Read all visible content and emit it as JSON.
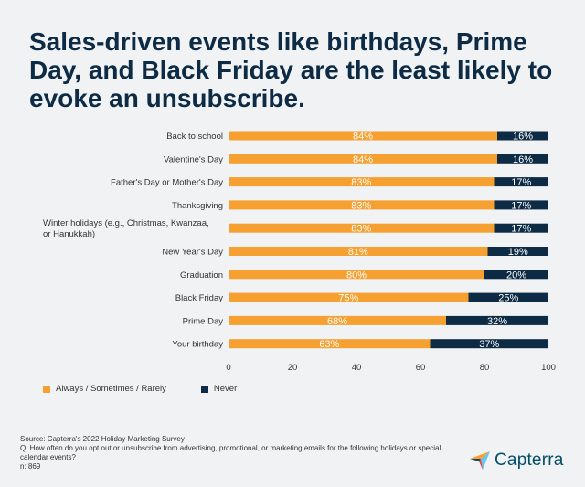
{
  "title": "Sales-driven events like birthdays, Prime Day, and Black Friday are the least likely to evoke an unsubscribe.",
  "colors": {
    "orange": "#f5a031",
    "navy": "#0d2b45",
    "background": "#f0f2f4"
  },
  "chart_data": {
    "type": "bar",
    "orientation": "horizontal",
    "stacked": true,
    "categories": [
      "Back to school",
      "Valentine's Day",
      "Father's Day or Mother's Day",
      "Thanksgiving",
      "Winter holidays (e.g., Christmas, Kwanzaa, or Hanukkah)",
      "New Year's Day",
      "Graduation",
      "Black Friday",
      "Prime Day",
      "Your birthday"
    ],
    "series": [
      {
        "name": "Always / Sometimes / Rarely",
        "color": "#f5a031",
        "values": [
          84,
          84,
          83,
          83,
          83,
          81,
          80,
          75,
          68,
          63
        ]
      },
      {
        "name": "Never",
        "color": "#0d2b45",
        "values": [
          16,
          16,
          17,
          17,
          17,
          19,
          20,
          25,
          32,
          37
        ]
      }
    ],
    "data_labels": {
      "Always / Sometimes / Rarely": [
        "84%",
        "84%",
        "83%",
        "83%",
        "83%",
        "81%",
        "80%",
        "75%",
        "68%",
        "63%"
      ],
      "Never": [
        "16%",
        "16%",
        "17%",
        "17%",
        "17%",
        "19%",
        "20%",
        "25%",
        "32%",
        "37%"
      ]
    },
    "xlim": [
      0,
      100
    ],
    "xticks": [
      0,
      20,
      40,
      60,
      80,
      100
    ],
    "grid": false,
    "legend_position": "bottom-left"
  },
  "legend": {
    "items": [
      {
        "label": "Always / Sometimes / Rarely",
        "color": "#f5a031"
      },
      {
        "label": "Never",
        "color": "#0d2b45"
      }
    ]
  },
  "footer": {
    "source": "Source: Capterra's 2022 Holiday Marketing Survey",
    "question": "Q: How often do you opt out or unsubscribe from advertising, promotional, or marketing emails for the following holidays or special calendar events?",
    "n": "n: 869"
  },
  "logo": {
    "text": "Capterra",
    "icon": "capterra-arrow-icon"
  }
}
